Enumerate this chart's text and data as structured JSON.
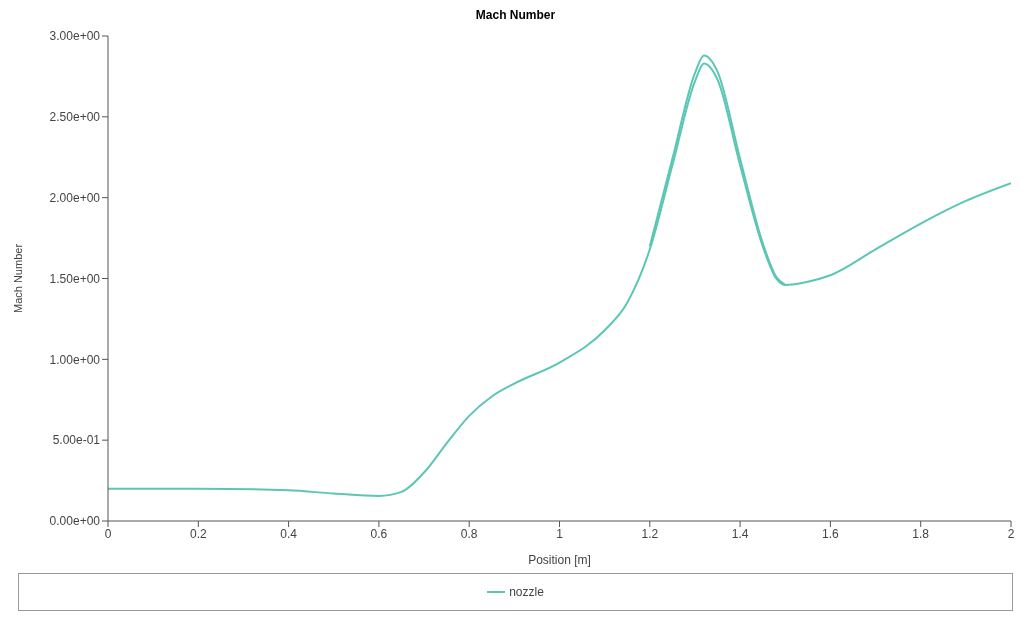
{
  "chart_data": {
    "type": "line",
    "title": "Mach Number",
    "xlabel": "Position [m]",
    "ylabel": "Mach Number",
    "xlim": [
      0,
      2
    ],
    "xticks": [
      0,
      0.2,
      0.4,
      0.6,
      0.8,
      1,
      1.2,
      1.4,
      1.6,
      1.8,
      2
    ],
    "ylim": [
      0,
      3
    ],
    "yticks": [
      {
        "value": 0,
        "label": "0.00e+00"
      },
      {
        "value": 0.5,
        "label": "5.00e-01"
      },
      {
        "value": 1,
        "label": "1.00e+00"
      },
      {
        "value": 1.5,
        "label": "1.50e+00"
      },
      {
        "value": 2,
        "label": "2.00e+00"
      },
      {
        "value": 2.5,
        "label": "2.50e+00"
      },
      {
        "value": 3,
        "label": "3.00e+00"
      }
    ],
    "legend": "bottom",
    "marker": "none",
    "line_style": "solid",
    "series": [
      {
        "name": "nozzle",
        "color": "#5cc6b5",
        "x": [
          0,
          0.2,
          0.4,
          0.5,
          0.6,
          0.65,
          0.7,
          0.75,
          0.8,
          0.85,
          0.9,
          1,
          1.1,
          1.15,
          1.2,
          1.25,
          1.3,
          1.32,
          1.35,
          1.4,
          1.45,
          1.48,
          1.5,
          1.55,
          1.6,
          1.7,
          1.8,
          1.9,
          2
        ],
        "values": [
          0.2,
          0.2,
          0.19,
          0.17,
          0.155,
          0.18,
          0.3,
          0.48,
          0.65,
          0.77,
          0.85,
          0.98,
          1.18,
          1.35,
          1.68,
          2.2,
          2.72,
          2.83,
          2.73,
          2.2,
          1.7,
          1.5,
          1.46,
          1.48,
          1.52,
          1.68,
          1.84,
          1.98,
          2.09
        ]
      },
      {
        "color": "#5cc6b5",
        "x": [
          1.2,
          1.25,
          1.3,
          1.32,
          1.35,
          1.4,
          1.45,
          1.48,
          1.5
        ],
        "values": [
          1.7,
          2.24,
          2.77,
          2.88,
          2.78,
          2.24,
          1.72,
          1.51,
          1.46
        ]
      }
    ]
  }
}
